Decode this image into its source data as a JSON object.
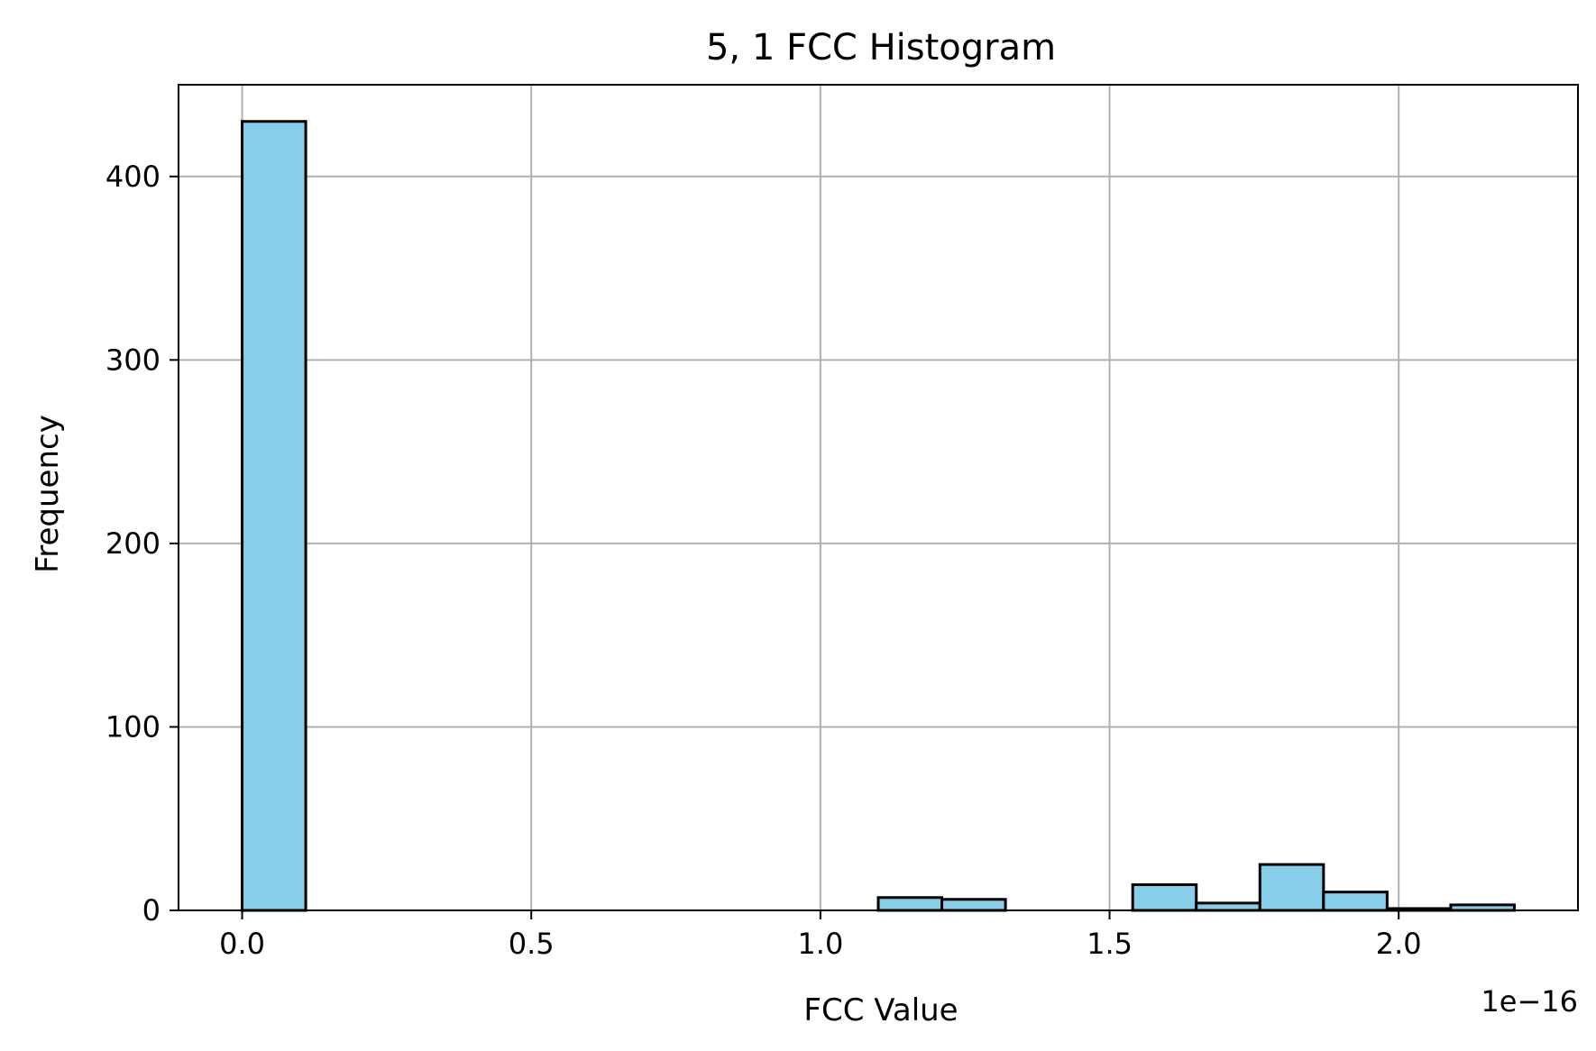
{
  "chart_data": {
    "type": "bar",
    "title": "5, 1 FCC Histogram",
    "xlabel": "FCC Value",
    "ylabel": "Frequency",
    "x_offset_label": "1e−16",
    "x_scale": 1e-16,
    "bar_color": "#87ceeb",
    "edge_color": "#000000",
    "grid": true,
    "xlim": [
      -0.11,
      2.31
    ],
    "ylim": [
      0,
      450
    ],
    "xticks": [
      0.0,
      0.5,
      1.0,
      1.5,
      2.0
    ],
    "xtick_labels": [
      "0.0",
      "0.5",
      "1.0",
      "1.5",
      "2.0"
    ],
    "yticks": [
      0,
      100,
      200,
      300,
      400
    ],
    "ytick_labels": [
      "0",
      "100",
      "200",
      "300",
      "400"
    ],
    "bin_edges": [
      0.0,
      0.11,
      0.22,
      0.33,
      0.44,
      0.55,
      0.66,
      0.77,
      0.88,
      0.99,
      1.1,
      1.21,
      1.32,
      1.43,
      1.54,
      1.65,
      1.76,
      1.87,
      1.98,
      2.09,
      2.2
    ],
    "counts": [
      430,
      0,
      0,
      0,
      0,
      0,
      0,
      0,
      0,
      0,
      7,
      6,
      0,
      0,
      14,
      4,
      25,
      10,
      1,
      3
    ]
  }
}
